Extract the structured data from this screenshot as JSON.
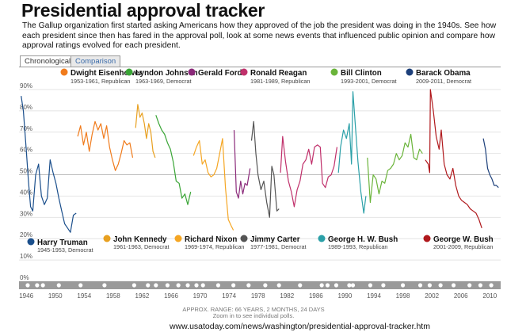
{
  "header": {
    "title": "Presidential approval tracker",
    "intro": "The Gallup organization first started asking Americans how they approved of the job the president was doing in the 1940s. See how each president since then has fared in the  approval poll, look at some news events that influenced public opinion and compare how approval ratings evolved for each president."
  },
  "tabs": [
    "Chronological",
    "Comparison"
  ],
  "footer": {
    "range": "APPROX. RANGE: 66 YEARS, 2 MONTHS, 24 DAYS",
    "hint": "Zoom in to see individual polls.",
    "url": "www.usatoday.com/news/washington/presidential-approval-tracker.htm"
  },
  "chart_data": {
    "type": "line",
    "title": "Presidential approval tracker",
    "xlabel": "",
    "ylabel": "",
    "xlim": [
      1945,
      2011.5
    ],
    "ylim": [
      0,
      90
    ],
    "yticks": [
      0,
      10,
      20,
      30,
      40,
      50,
      60,
      70,
      80,
      90
    ],
    "ytick_labels": [
      "0%",
      "10%",
      "20%",
      "30%",
      "40%",
      "50%",
      "60%",
      "70%",
      "80%",
      "90%"
    ],
    "xticks": [
      1946,
      1950,
      1954,
      1958,
      1962,
      1966,
      1970,
      1974,
      1978,
      1982,
      1986,
      1990,
      1994,
      1998,
      2002,
      2006,
      2010
    ],
    "reference_line": 50,
    "event_markers": [
      1946.2,
      1947.5,
      1948.3,
      1950.5,
      1953.5,
      1956.8,
      1960.9,
      1962.8,
      1963.9,
      1965.5,
      1967.0,
      1968.3,
      1969.5,
      1970.4,
      1972.5,
      1974.6,
      1976.7,
      1979.0,
      1980.9,
      1983.8,
      1986.8,
      1987.6,
      1988.8,
      1990.6,
      1991.1,
      1993.5,
      1995.3,
      1998.0,
      2000.4,
      2001.7,
      2003.2,
      2005.0,
      2007.2,
      2008.7,
      2010.2
    ],
    "series": [
      {
        "name": "Harry Truman",
        "years": "1945-1953, Democrat",
        "color": "#1b4f8c",
        "x": [
          1945.3,
          1945.6,
          1946.0,
          1946.3,
          1946.6,
          1946.9,
          1947.3,
          1947.7,
          1948.1,
          1948.5,
          1948.9,
          1949.3,
          1949.7,
          1950.1,
          1950.5,
          1950.9,
          1951.3,
          1951.7,
          1952.1,
          1952.5,
          1952.9
        ],
        "y": [
          87,
          80,
          62,
          47,
          35,
          33,
          50,
          55,
          40,
          36,
          39,
          57,
          51,
          46,
          39,
          33,
          27,
          25,
          23,
          31,
          32
        ]
      },
      {
        "name": "Dwight Eisenhower",
        "years": "1953-1961, Republican",
        "color": "#f07b1c",
        "x": [
          1953.1,
          1953.5,
          1953.9,
          1954.3,
          1954.7,
          1955.1,
          1955.5,
          1955.9,
          1956.3,
          1956.7,
          1957.1,
          1957.5,
          1957.9,
          1958.3,
          1958.7,
          1959.1,
          1959.5,
          1959.9,
          1960.3,
          1960.7
        ],
        "y": [
          68,
          73,
          64,
          70,
          61,
          69,
          75,
          71,
          74,
          67,
          73,
          63,
          57,
          52,
          55,
          60,
          66,
          64,
          65,
          58
        ]
      },
      {
        "name": "John Kennedy",
        "years": "1961-1963, Democrat",
        "color": "#e8a020",
        "x": [
          1961.1,
          1961.4,
          1961.7,
          1962.0,
          1962.3,
          1962.6,
          1962.9,
          1963.2,
          1963.5,
          1963.8
        ],
        "y": [
          72,
          83,
          77,
          79,
          74,
          67,
          74,
          70,
          61,
          58
        ]
      },
      {
        "name": "Lyndon Johnson",
        "years": "1963-1969, Democrat",
        "color": "#3aa536",
        "x": [
          1963.9,
          1964.3,
          1964.7,
          1965.1,
          1965.5,
          1965.9,
          1966.3,
          1966.7,
          1967.1,
          1967.5,
          1967.9,
          1968.3,
          1968.7
        ],
        "y": [
          78,
          74,
          71,
          69,
          65,
          62,
          56,
          47,
          46,
          39,
          41,
          36,
          42
        ]
      },
      {
        "name": "Richard Nixon",
        "years": "1969-1974, Republican",
        "color": "#f5a623",
        "x": [
          1969.1,
          1969.5,
          1969.9,
          1970.3,
          1970.7,
          1971.1,
          1971.5,
          1971.9,
          1972.3,
          1972.7,
          1973.1,
          1973.5,
          1973.9,
          1974.3,
          1974.6
        ],
        "y": [
          59,
          63,
          66,
          55,
          57,
          51,
          49,
          50,
          53,
          60,
          67,
          44,
          29,
          26,
          24
        ]
      },
      {
        "name": "Gerald Ford",
        "years": "",
        "color": "#8b2a7a",
        "x": [
          1974.7,
          1975.0,
          1975.3,
          1975.6,
          1975.9,
          1976.2,
          1976.5,
          1976.9
        ],
        "y": [
          71,
          42,
          39,
          47,
          41,
          46,
          45,
          53
        ]
      },
      {
        "name": "Jimmy Carter",
        "years": "1977-1981, Democrat",
        "color": "#555555",
        "x": [
          1977.1,
          1977.4,
          1977.7,
          1978.0,
          1978.4,
          1978.8,
          1979.2,
          1979.6,
          1979.9,
          1980.2,
          1980.6,
          1980.9
        ],
        "y": [
          66,
          75,
          60,
          50,
          43,
          47,
          37,
          30,
          54,
          50,
          33,
          34
        ]
      },
      {
        "name": "Ronald Reagan",
        "years": "1981-1989, Republican",
        "color": "#c0306b",
        "x": [
          1981.1,
          1981.4,
          1981.8,
          1982.2,
          1982.6,
          1983.0,
          1983.4,
          1983.8,
          1984.2,
          1984.6,
          1985.0,
          1985.4,
          1985.8,
          1986.2,
          1986.6,
          1986.9,
          1987.3,
          1987.7,
          1988.1,
          1988.5,
          1988.9
        ],
        "y": [
          51,
          68,
          56,
          47,
          42,
          35,
          43,
          47,
          55,
          57,
          62,
          55,
          63,
          64,
          63,
          46,
          44,
          49,
          50,
          54,
          63
        ]
      },
      {
        "name": "George H. W. Bush",
        "years": "1989-1993, Republican",
        "color": "#2ba0a8",
        "x": [
          1989.1,
          1989.4,
          1989.8,
          1990.2,
          1990.6,
          1990.9,
          1991.1,
          1991.4,
          1991.8,
          1992.2,
          1992.6,
          1992.9
        ],
        "y": [
          51,
          63,
          71,
          67,
          74,
          55,
          89,
          75,
          56,
          42,
          32,
          40
        ]
      },
      {
        "name": "Bill Clinton",
        "years": "1993-2001, Democrat",
        "color": "#6ab43a",
        "x": [
          1993.1,
          1993.5,
          1993.9,
          1994.3,
          1994.7,
          1995.1,
          1995.5,
          1995.9,
          1996.3,
          1996.7,
          1997.1,
          1997.5,
          1997.9,
          1998.3,
          1998.7,
          1999.1,
          1999.5,
          1999.9,
          2000.3,
          2000.7
        ],
        "y": [
          58,
          37,
          50,
          48,
          41,
          47,
          46,
          52,
          53,
          55,
          60,
          57,
          59,
          65,
          63,
          69,
          58,
          57,
          62,
          60
        ]
      },
      {
        "name": "George W. Bush",
        "years": "2001-2009, Republican",
        "color": "#b0181c",
        "x": [
          2001.1,
          2001.5,
          2001.7,
          2001.8,
          2002.2,
          2002.6,
          2003.0,
          2003.3,
          2003.7,
          2004.1,
          2004.5,
          2004.9,
          2005.3,
          2005.7,
          2006.1,
          2006.5,
          2006.9,
          2007.3,
          2007.7,
          2008.1,
          2008.5,
          2008.9
        ],
        "y": [
          57,
          55,
          51,
          90,
          80,
          68,
          62,
          71,
          55,
          50,
          48,
          53,
          45,
          40,
          38,
          37,
          36,
          34,
          33,
          32,
          29,
          25
        ]
      },
      {
        "name": "Barack Obama",
        "years": "2009-2011, Democrat",
        "color": "#1c3f7a",
        "x": [
          2009.1,
          2009.4,
          2009.7,
          2010.0,
          2010.3,
          2010.6,
          2010.9,
          2011.2
        ],
        "y": [
          67,
          62,
          53,
          50,
          48,
          45,
          45,
          44
        ]
      }
    ]
  }
}
